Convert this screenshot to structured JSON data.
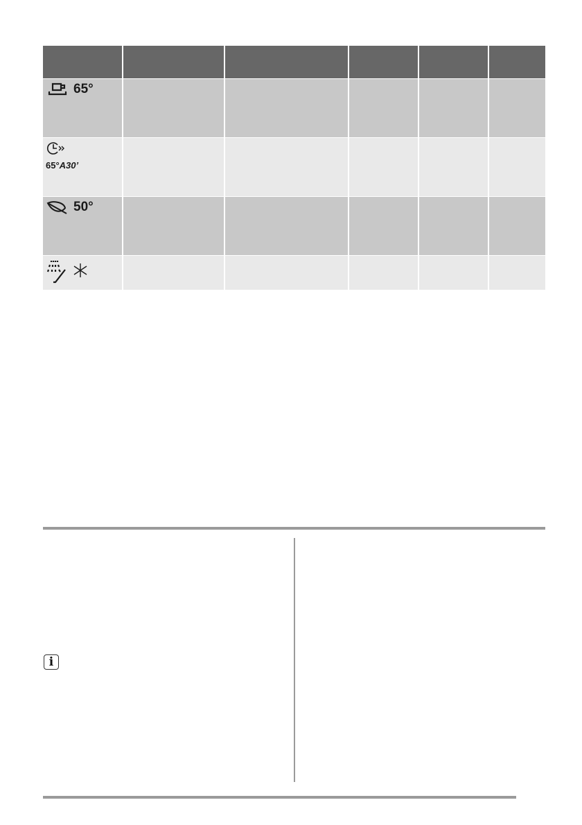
{
  "programme_table": {
    "header_color": "#676767",
    "row_colors": [
      "#c8c8c8",
      "#e9e9e9"
    ],
    "rows": [
      {
        "icon": "cup-saucer-icon",
        "label": "65°"
      },
      {
        "icon": "clock-arrow-icon",
        "label": "65°",
        "label_suffix": "A30’"
      },
      {
        "icon": "leaf-icon",
        "label": "50°"
      },
      {
        "icon": "spray-rinse-icon",
        "label": ""
      }
    ]
  },
  "notes": {
    "info_icon": "info-icon"
  },
  "rule_color": "#9a9a9a"
}
